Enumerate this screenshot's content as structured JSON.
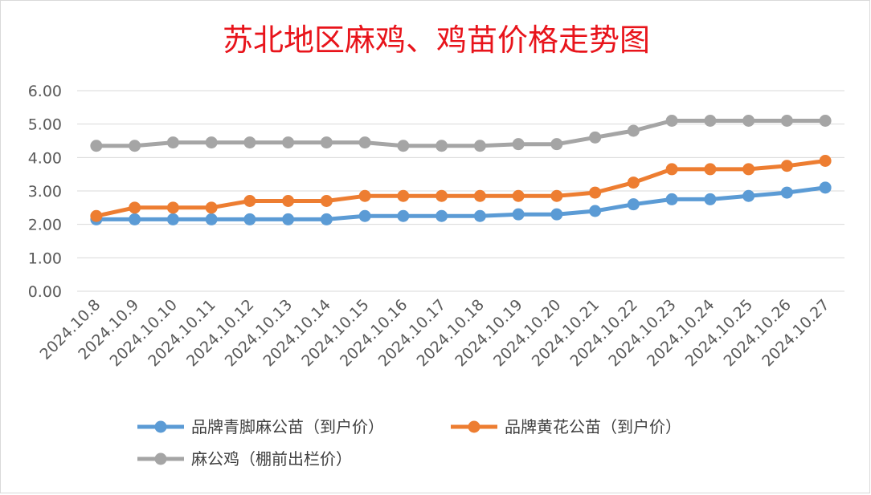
{
  "chart_data": {
    "type": "line",
    "title": "苏北地区麻鸡、鸡苗价格走势图",
    "categories": [
      "2024.10.8",
      "2024.10.9",
      "2024.10.10",
      "2024.10.11",
      "2024.10.12",
      "2024.10.13",
      "2024.10.14",
      "2024.10.15",
      "2024.10.16",
      "2024.10.17",
      "2024.10.18",
      "2024.10.19",
      "2024.10.20",
      "2024.10.21",
      "2024.10.22",
      "2024.10.23",
      "2024.10.24",
      "2024.10.25",
      "2024.10.26",
      "2024.10.27"
    ],
    "y_ticks": [
      "0.00",
      "1.00",
      "2.00",
      "3.00",
      "4.00",
      "5.00",
      "6.00"
    ],
    "ylim": [
      0,
      6
    ],
    "grid": true,
    "legend_position": "bottom",
    "series": [
      {
        "name": "品牌青脚麻公苗（到户价）",
        "color": "#5b9bd5",
        "values": [
          2.15,
          2.15,
          2.15,
          2.15,
          2.15,
          2.15,
          2.15,
          2.25,
          2.25,
          2.25,
          2.25,
          2.3,
          2.3,
          2.4,
          2.6,
          2.75,
          2.75,
          2.85,
          2.95,
          3.1
        ]
      },
      {
        "name": "品牌黄花公苗（到户价）",
        "color": "#ed7d31",
        "values": [
          2.25,
          2.5,
          2.5,
          2.5,
          2.7,
          2.7,
          2.7,
          2.85,
          2.85,
          2.85,
          2.85,
          2.85,
          2.85,
          2.95,
          3.25,
          3.65,
          3.65,
          3.65,
          3.75,
          3.9
        ]
      },
      {
        "name": "麻公鸡（棚前出栏价）",
        "color": "#a5a5a5",
        "values": [
          4.35,
          4.35,
          4.45,
          4.45,
          4.45,
          4.45,
          4.45,
          4.45,
          4.35,
          4.35,
          4.35,
          4.4,
          4.4,
          4.6,
          4.8,
          5.1,
          5.1,
          5.1,
          5.1,
          5.1
        ]
      }
    ]
  }
}
